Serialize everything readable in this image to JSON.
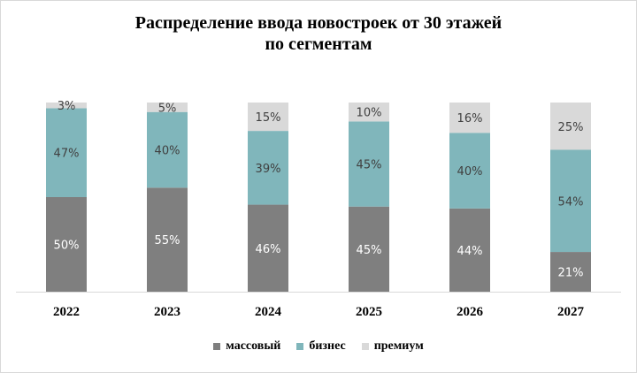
{
  "chart_data": {
    "type": "bar",
    "stacked": true,
    "title": "Распределение ввода новостроек от 30 этажей",
    "subtitle": "по сегментам",
    "categories": [
      "2022",
      "2023",
      "2024",
      "2025",
      "2026",
      "2027"
    ],
    "series": [
      {
        "name": "массовый",
        "color": "#7f7f7f",
        "values": [
          50,
          55,
          46,
          45,
          44,
          21
        ],
        "labels": [
          "50%",
          "55%",
          "46%",
          "45%",
          "44%",
          "21%"
        ]
      },
      {
        "name": "бизнес",
        "color": "#80b6bb",
        "values": [
          47,
          40,
          39,
          45,
          40,
          54
        ],
        "labels": [
          "47%",
          "40%",
          "39%",
          "45%",
          "40%",
          "54%"
        ]
      },
      {
        "name": "премиум",
        "color": "#d9d9d9",
        "values": [
          3,
          5,
          15,
          10,
          16,
          25
        ],
        "labels": [
          "3%",
          "5%",
          "15%",
          "10%",
          "16%",
          "25%"
        ]
      }
    ],
    "ylim": [
      0,
      100
    ],
    "grid": false,
    "legend_position": "bottom"
  }
}
